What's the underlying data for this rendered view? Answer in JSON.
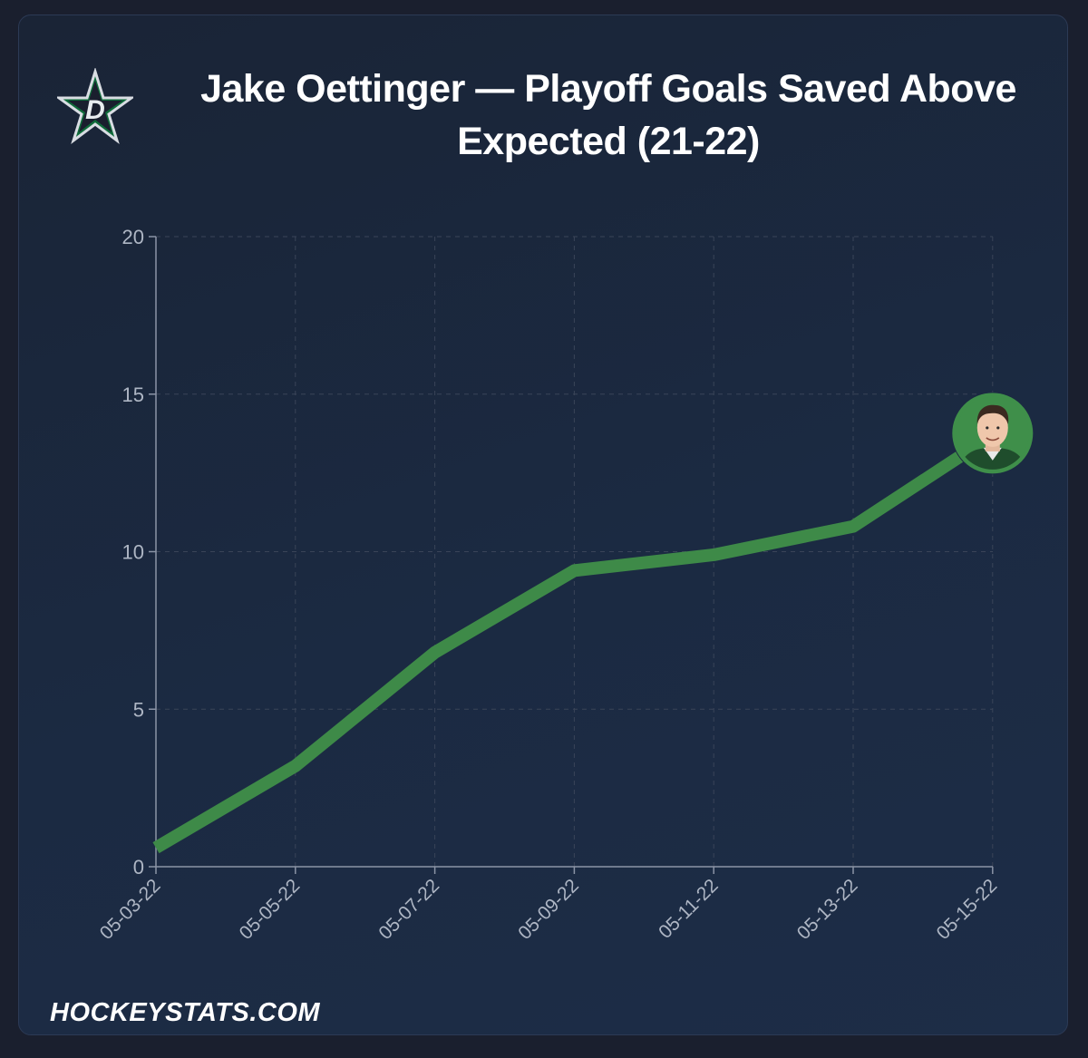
{
  "title": "Jake Oettinger — Playoff Goals Saved Above Expected (21-22)",
  "brand": "HOCKEYSTATS.COM",
  "logo_icon": "dallas-stars-star-icon",
  "avatar_icon": "player-headshot-avatar",
  "colors": {
    "line": "#3e8a48",
    "grid": "#3a4458",
    "axis": "#8b94a6",
    "avatar_bg": "#3f8f4a"
  },
  "chart_data": {
    "type": "line",
    "x": [
      "05-03-22",
      "05-05-22",
      "05-07-22",
      "05-09-22",
      "05-11-22",
      "05-13-22",
      "05-15-22"
    ],
    "y_ticks": [
      "0",
      "5",
      "10",
      "15",
      "20"
    ],
    "ylim": [
      0,
      20
    ],
    "series": [
      {
        "values": [
          0.6,
          3.2,
          6.8,
          9.4,
          9.9,
          10.8,
          13.7
        ]
      }
    ],
    "grid": true,
    "xlabel": "",
    "ylabel": ""
  }
}
